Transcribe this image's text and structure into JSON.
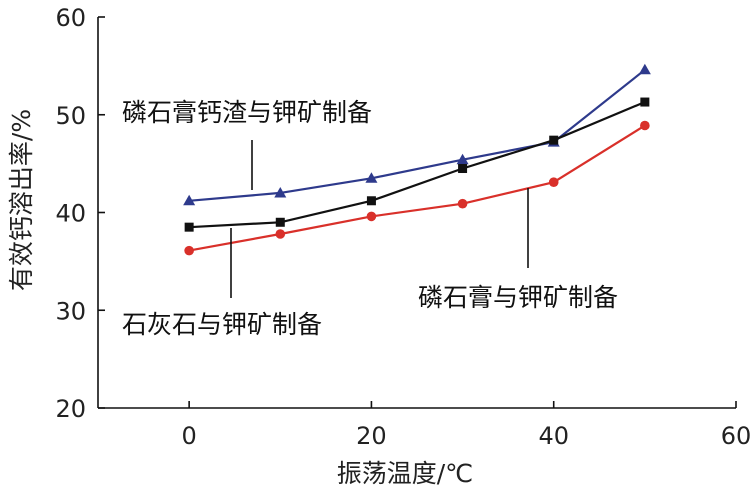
{
  "chart_data": {
    "type": "line",
    "xlabel": "振荡温度/℃",
    "ylabel": "有效钙溶出率/%",
    "xlim": [
      -10,
      60
    ],
    "ylim": [
      20,
      60
    ],
    "xticks": [
      "0",
      "20",
      "40",
      "60"
    ],
    "yticks": [
      "20",
      "30",
      "40",
      "50",
      "60"
    ],
    "grid": false,
    "series": [
      {
        "name": "磷石膏钙渣与钾矿制备",
        "color": "#2e3a8c",
        "marker": "triangle",
        "x": [
          0,
          10,
          20,
          30,
          40,
          50
        ],
        "y": [
          41.2,
          42.0,
          43.5,
          45.4,
          47.2,
          54.6
        ]
      },
      {
        "name": "石灰石与钾矿制备",
        "color": "#111111",
        "marker": "square",
        "x": [
          0,
          10,
          20,
          30,
          40,
          50
        ],
        "y": [
          38.5,
          39.0,
          41.2,
          44.5,
          47.4,
          51.3
        ]
      },
      {
        "name": "磷石膏与钾矿制备",
        "color": "#d9302a",
        "marker": "circle",
        "x": [
          0,
          10,
          20,
          30,
          40,
          50
        ],
        "y": [
          36.1,
          37.8,
          39.6,
          40.9,
          43.1,
          48.9
        ]
      }
    ]
  }
}
